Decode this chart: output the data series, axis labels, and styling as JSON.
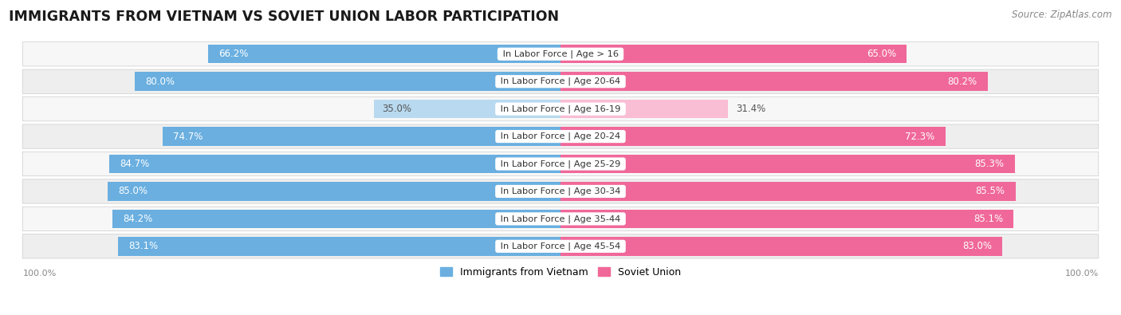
{
  "title": "IMMIGRANTS FROM VIETNAM VS SOVIET UNION LABOR PARTICIPATION",
  "source": "Source: ZipAtlas.com",
  "categories": [
    "In Labor Force | Age > 16",
    "In Labor Force | Age 20-64",
    "In Labor Force | Age 16-19",
    "In Labor Force | Age 20-24",
    "In Labor Force | Age 25-29",
    "In Labor Force | Age 30-34",
    "In Labor Force | Age 35-44",
    "In Labor Force | Age 45-54"
  ],
  "vietnam_values": [
    66.2,
    80.0,
    35.0,
    74.7,
    84.7,
    85.0,
    84.2,
    83.1
  ],
  "soviet_values": [
    65.0,
    80.2,
    31.4,
    72.3,
    85.3,
    85.5,
    85.1,
    83.0
  ],
  "vietnam_color_full": "#6aafe0",
  "vietnam_color_light": "#b8d9ef",
  "soviet_color_full": "#f06899",
  "soviet_color_light": "#f9bdd4",
  "row_bg_light": "#f7f7f7",
  "row_bg_dark": "#eeeeee",
  "max_val": 100.0,
  "bar_height": 0.68,
  "title_fontsize": 12.5,
  "source_fontsize": 8.5,
  "value_fontsize": 8.5,
  "category_fontsize": 8.2,
  "legend_fontsize": 9,
  "threshold": 50.0
}
